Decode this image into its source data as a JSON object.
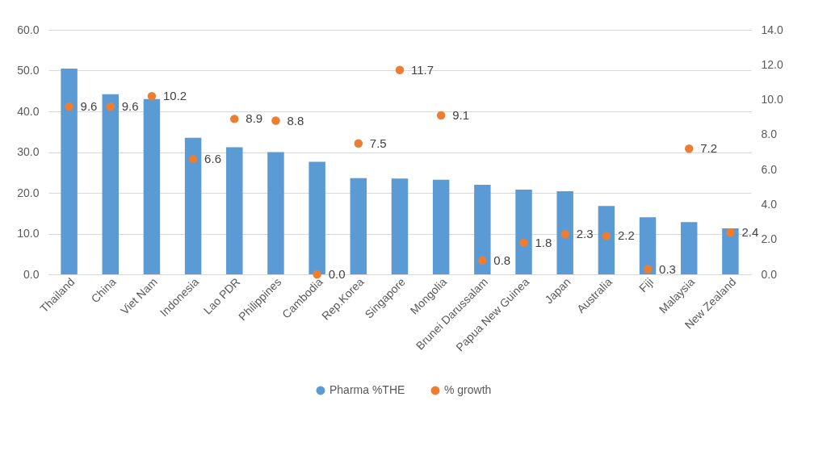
{
  "chart_data": {
    "type": "bar",
    "categories": [
      "Thailand",
      "China",
      "Viet Nam",
      "Indonesia",
      "Lao PDR",
      "Philippines",
      "Cambodia",
      "Rep.Korea",
      "Singapore",
      "Mongolia",
      "Brunei Darussalam",
      "Papua New Guinea",
      "Japan",
      "Australia",
      "Fiji",
      "Malaysia",
      "New Zealand"
    ],
    "series": [
      {
        "name": "Pharma %THE",
        "color": "#5b9bd5",
        "values": [
          50.5,
          44.2,
          43.0,
          33.5,
          31.2,
          30.0,
          27.6,
          23.6,
          23.5,
          23.2,
          22.0,
          20.8,
          20.4,
          16.8,
          14.0,
          12.8,
          11.3
        ]
      },
      {
        "name": "% growth",
        "type": "scatter",
        "axis": "y2",
        "color": "#ed7d31",
        "values": [
          9.6,
          9.6,
          10.2,
          6.6,
          8.9,
          8.8,
          0.0,
          7.5,
          11.7,
          9.1,
          0.8,
          1.8,
          2.3,
          2.2,
          0.3,
          7.2,
          2.4
        ],
        "value_labels": [
          "9.6",
          "9.6",
          "10.2",
          "6.6",
          "8.9",
          "8.8",
          "0.0",
          "7.5",
          "11.7",
          "9.1",
          "0.8",
          "1.8",
          "2.3",
          "2.2",
          "0.3",
          "7.2",
          "2.4"
        ]
      }
    ],
    "ylim": [
      0,
      60
    ],
    "yticks": [
      {
        "value": 0,
        "label": "0.0"
      },
      {
        "value": 10,
        "label": "10.0"
      },
      {
        "value": 20,
        "label": "20.0"
      },
      {
        "value": 30,
        "label": "30.0"
      },
      {
        "value": 40,
        "label": "40.0"
      },
      {
        "value": 50,
        "label": "50.0"
      },
      {
        "value": 60,
        "label": "60.0"
      }
    ],
    "y2lim": [
      0,
      14
    ],
    "y2ticks": [
      {
        "value": 0,
        "label": "0.0"
      },
      {
        "value": 2,
        "label": "2.0"
      },
      {
        "value": 4,
        "label": "4.0"
      },
      {
        "value": 6,
        "label": "6.0"
      },
      {
        "value": 8,
        "label": "8.0"
      },
      {
        "value": 10,
        "label": "10.0"
      },
      {
        "value": 12,
        "label": "12.0"
      },
      {
        "value": 14,
        "label": "14.0"
      }
    ],
    "grid": "y",
    "legend": "bottom",
    "marker": "circle"
  }
}
